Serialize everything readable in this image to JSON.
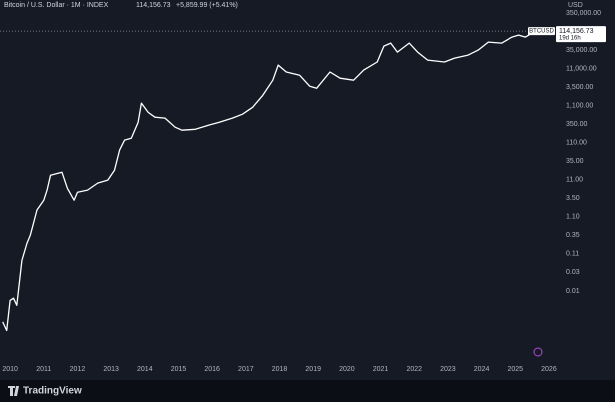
{
  "chart_data": {
    "type": "line",
    "title": "Bitcoin / U.S. Dollar · 1M · INDEX",
    "last": "114,156.73",
    "change": "+5,859.99 (+5.41%)",
    "unit": "USD",
    "symbol": "BTCUSD",
    "brand": "TradingView",
    "log_scale": true,
    "grid": false,
    "price_tag": {
      "value": 114156.73,
      "label": "114,156.73",
      "countdown": "19d 16h"
    },
    "xlim": [
      2009.7,
      2026.18
    ],
    "xticks": [
      2010,
      2011,
      2012,
      2013,
      2014,
      2015,
      2016,
      2017,
      2018,
      2019,
      2020,
      2021,
      2022,
      2023,
      2024,
      2025,
      2026
    ],
    "ylim": [
      0.00015,
      480000
    ],
    "yticks": [
      {
        "value": 0.011,
        "label": "0.01"
      },
      {
        "value": 0.035,
        "label": "0.03"
      },
      0.11,
      0.35,
      {
        "value": 1.1,
        "label": "1.10"
      },
      {
        "value": 3.5,
        "label": "3.50"
      },
      {
        "value": 11,
        "label": "11.00"
      },
      {
        "value": 35,
        "label": "35.00"
      },
      {
        "value": 110,
        "label": "110.00"
      },
      {
        "value": 350,
        "label": "350.00"
      },
      {
        "value": 1100,
        "label": "1,100.00"
      },
      {
        "value": 3500,
        "label": "3,500.00"
      },
      {
        "value": 11000,
        "label": "11,000.00"
      },
      {
        "value": 35000,
        "label": "35,000.00"
      },
      {
        "value": 350000,
        "label": "350,000.00"
      }
    ],
    "x": [
      2009.78,
      2009.9,
      2010.0,
      2010.1,
      2010.2,
      2010.35,
      2010.5,
      2010.6,
      2010.8,
      2011.0,
      2011.1,
      2011.2,
      2011.54,
      2011.7,
      2011.9,
      2012.0,
      2012.3,
      2012.6,
      2012.9,
      2013.1,
      2013.25,
      2013.4,
      2013.6,
      2013.8,
      2013.9,
      2014.1,
      2014.3,
      2014.6,
      2014.9,
      2015.1,
      2015.5,
      2015.9,
      2016.2,
      2016.6,
      2016.9,
      2017.2,
      2017.5,
      2017.8,
      2017.96,
      2018.2,
      2018.6,
      2018.9,
      2019.1,
      2019.5,
      2019.8,
      2020.2,
      2020.5,
      2020.9,
      2021.1,
      2021.3,
      2021.5,
      2021.85,
      2022.1,
      2022.4,
      2022.9,
      2023.2,
      2023.6,
      2023.9,
      2024.2,
      2024.6,
      2024.9,
      2025.1,
      2025.3,
      2025.5,
      2025.64
    ],
    "series": [
      {
        "name": "BTCUSD",
        "color": "#ffffff",
        "values": [
          0.0016,
          0.00094,
          0.0061,
          0.007,
          0.0045,
          0.073,
          0.21,
          0.35,
          1.68,
          3.1,
          5.8,
          14.6,
          17.6,
          6.5,
          3.1,
          5.1,
          5.8,
          9.0,
          10.8,
          20,
          70,
          130,
          146,
          390,
          1300,
          730,
          540,
          510,
          290,
          240,
          255,
          330,
          390,
          510,
          650,
          1000,
          2100,
          5400,
          13800,
          9000,
          7300,
          3700,
          3250,
          9000,
          6100,
          5400,
          10100,
          16700,
          45000,
          54000,
          30900,
          54000,
          30900,
          18800,
          16700,
          21300,
          25600,
          35000,
          57500,
          54000,
          78500,
          88800,
          78500,
          100800,
          114156.73
        ]
      }
    ]
  }
}
